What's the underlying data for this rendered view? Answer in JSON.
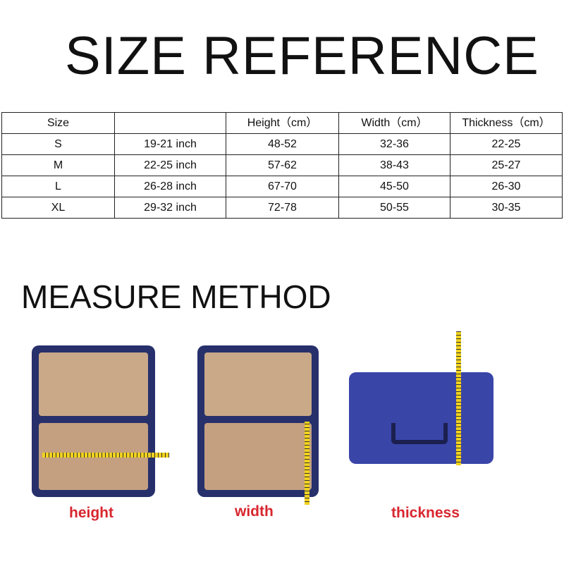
{
  "title": "SIZE REFERENCE",
  "table": {
    "headers": [
      "Size",
      "",
      "Height（cm）",
      "Width（cm）",
      "Thickness（cm）"
    ],
    "rows": [
      [
        "S",
        "19-21 inch",
        "48-52",
        "32-36",
        "22-25"
      ],
      [
        "M",
        "22-25 inch",
        "57-62",
        "38-43",
        "25-27"
      ],
      [
        "L",
        "26-28 inch",
        "67-70",
        "45-50",
        "26-30"
      ],
      [
        "XL",
        "29-32 inch",
        "72-78",
        "50-55",
        "30-35"
      ]
    ]
  },
  "measure_title": "MEASURE METHOD",
  "images": [
    {
      "label": "height",
      "color": "#d8262e"
    },
    {
      "label": "width",
      "color": "#d8262e"
    },
    {
      "label": "thickness",
      "color": "#d8262e"
    }
  ],
  "colors": {
    "suitcase": "#27306b",
    "interior": "#c9a988",
    "tape": "#f2d21e"
  }
}
